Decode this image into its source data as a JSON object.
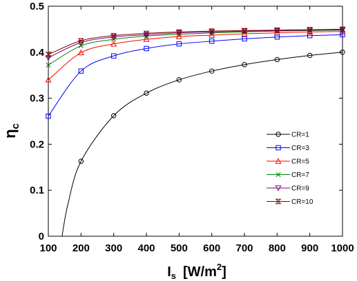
{
  "chart_data": {
    "type": "line",
    "title": "",
    "xlabel": {
      "main": "I",
      "sub": "s",
      "unit_prefix": "[W/m",
      "unit_sup": "2",
      "unit_suffix": "]"
    },
    "ylabel": {
      "main": "η",
      "sub": "c"
    },
    "xlim": [
      100,
      1000
    ],
    "ylim": [
      0,
      0.5
    ],
    "xticks": [
      100,
      200,
      300,
      400,
      500,
      600,
      700,
      800,
      900,
      1000
    ],
    "yticks": [
      0,
      0.1,
      0.2,
      0.3,
      0.4,
      0.5
    ],
    "xtick_labels": [
      "100",
      "200",
      "300",
      "400",
      "500",
      "600",
      "700",
      "800",
      "900",
      "1000"
    ],
    "ytick_labels": [
      "0",
      "0.1",
      "0.2",
      "0.3",
      "0.4",
      "0.5"
    ],
    "grid": false,
    "legend_position": "right-middle",
    "x": [
      100,
      200,
      300,
      400,
      500,
      600,
      700,
      800,
      900,
      1000
    ],
    "series": [
      {
        "name": "CR=1",
        "color": "#000000",
        "marker": "circle",
        "x": [
          142,
          160,
          200,
          300,
          400,
          500,
          600,
          700,
          800,
          900,
          1000
        ],
        "values": [
          0,
          0.07,
          0.163,
          0.262,
          0.311,
          0.34,
          0.359,
          0.373,
          0.384,
          0.393,
          0.4
        ]
      },
      {
        "name": "CR=3",
        "color": "#0000ff",
        "marker": "square",
        "values": [
          0.261,
          0.359,
          0.392,
          0.408,
          0.418,
          0.424,
          0.429,
          0.433,
          0.436,
          0.438
        ]
      },
      {
        "name": "CR=5",
        "color": "#ff0000",
        "marker": "triangle-up",
        "values": [
          0.34,
          0.399,
          0.418,
          0.428,
          0.434,
          0.437,
          0.44,
          0.442,
          0.444,
          0.445
        ]
      },
      {
        "name": "CR=7",
        "color": "#008000",
        "marker": "bowtie",
        "values": [
          0.372,
          0.414,
          0.428,
          0.435,
          0.439,
          0.442,
          0.444,
          0.446,
          0.447,
          0.448
        ]
      },
      {
        "name": "CR=9",
        "color": "#800080",
        "marker": "triangle-down",
        "values": [
          0.388,
          0.421,
          0.433,
          0.438,
          0.442,
          0.444,
          0.446,
          0.447,
          0.448,
          0.449
        ]
      },
      {
        "name": "CR=10",
        "color": "#800000",
        "marker": "hourglass",
        "values": [
          0.395,
          0.425,
          0.436,
          0.441,
          0.444,
          0.446,
          0.447,
          0.448,
          0.449,
          0.45
        ]
      }
    ]
  }
}
